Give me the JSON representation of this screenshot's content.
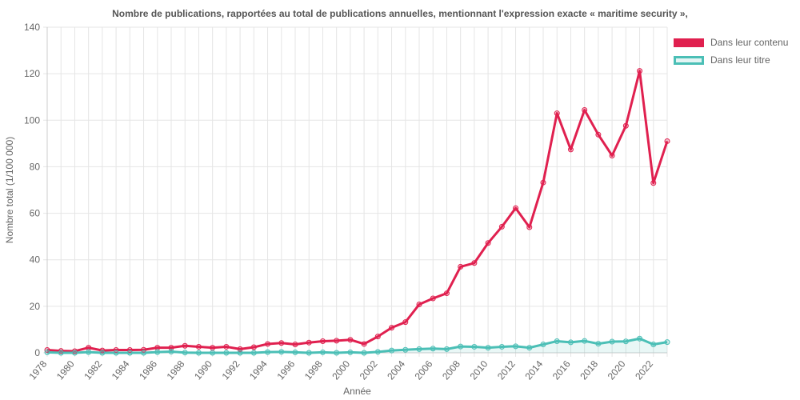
{
  "chart_data": {
    "type": "line",
    "title": "Nombre de publications, rapportées au total de publications annuelles, mentionnant l'expression exacte « maritime security »,",
    "xlabel": "Année",
    "ylabel": "Nombre total (1/100 000)",
    "ylim": [
      0,
      140
    ],
    "yticks": [
      0,
      20,
      40,
      60,
      80,
      100,
      120,
      140
    ],
    "xticks": [
      "1978",
      "1980",
      "1982",
      "1984",
      "1986",
      "1988",
      "1990",
      "1992",
      "1994",
      "1996",
      "1998",
      "2000",
      "2002",
      "2004",
      "2006",
      "2008",
      "2010",
      "2012",
      "2014",
      "2016",
      "2018",
      "2020",
      "2022"
    ],
    "x": [
      1978,
      1979,
      1980,
      1981,
      1982,
      1983,
      1984,
      1985,
      1986,
      1987,
      1988,
      1989,
      1990,
      1991,
      1992,
      1993,
      1994,
      1995,
      1996,
      1997,
      1998,
      1999,
      2000,
      2001,
      2002,
      2003,
      2004,
      2005,
      2006,
      2007,
      2008,
      2009,
      2010,
      2011,
      2012,
      2013,
      2014,
      2015,
      2016,
      2017,
      2018,
      2019,
      2020,
      2021,
      2022,
      2023
    ],
    "grid": true,
    "legend_position": "top-right",
    "series": [
      {
        "name": "Dans leur contenu",
        "color": "#e0204f",
        "values": [
          1.2,
          0.8,
          0.7,
          2.2,
          1.0,
          1.2,
          1.2,
          1.3,
          2.2,
          2.2,
          3.0,
          2.6,
          2.2,
          2.6,
          1.6,
          2.4,
          3.8,
          4.2,
          3.6,
          4.4,
          5.0,
          5.2,
          5.6,
          3.8,
          7.0,
          10.8,
          13.2,
          20.8,
          23.4,
          25.6,
          37.0,
          38.6,
          47.2,
          54.2,
          62.2,
          54.0,
          73.2,
          103.0,
          87.4,
          104.4,
          93.8,
          84.8,
          97.6,
          121.2,
          73.0,
          91.0
        ]
      },
      {
        "name": "Dans leur titre",
        "color": "#4bbfb6",
        "values": [
          0.2,
          0.0,
          0.0,
          0.3,
          0.0,
          0.0,
          0.0,
          0.0,
          0.3,
          0.5,
          0.1,
          0.0,
          0.0,
          0.0,
          0.0,
          0.0,
          0.3,
          0.4,
          0.2,
          0.0,
          0.2,
          0.0,
          0.2,
          0.0,
          0.4,
          1.0,
          1.3,
          1.6,
          1.8,
          1.6,
          2.7,
          2.6,
          2.2,
          2.6,
          2.8,
          2.2,
          3.6,
          5.0,
          4.5,
          5.1,
          3.9,
          4.8,
          4.9,
          6.1,
          3.6,
          4.6
        ]
      }
    ]
  }
}
